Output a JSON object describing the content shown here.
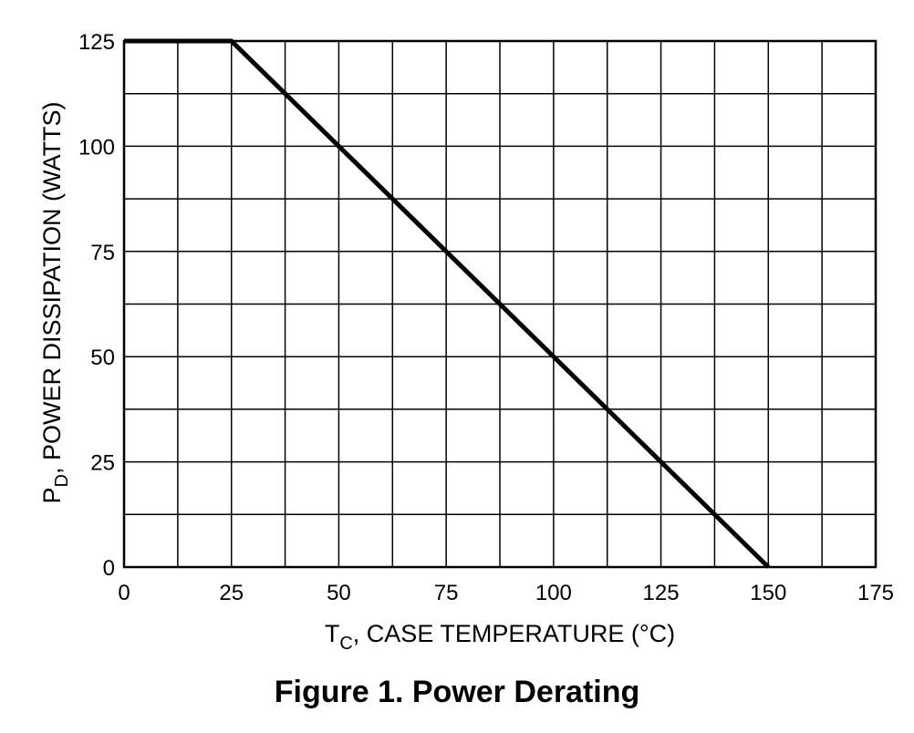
{
  "chart_data": {
    "type": "line",
    "title": "",
    "xlabel": {
      "main": "T",
      "sub": "C",
      "rest": ", CASE TEMPERATURE (°C)"
    },
    "ylabel": {
      "main": "P",
      "sub": "D",
      "rest": ", POWER DISSIPATION (WATTS)"
    },
    "xlim": [
      0,
      175
    ],
    "ylim": [
      0,
      125
    ],
    "x_ticks": [
      0,
      25,
      50,
      75,
      100,
      125,
      150,
      175
    ],
    "y_ticks": [
      0,
      25,
      50,
      75,
      100,
      125
    ],
    "x_tick_labels": [
      "0",
      "25",
      "50",
      "75",
      "100",
      "125",
      "150",
      "175"
    ],
    "y_tick_labels": [
      "0",
      "25",
      "50",
      "75",
      "100",
      "125"
    ],
    "grid": true,
    "series": [
      {
        "x": [
          0,
          25,
          150
        ],
        "y": [
          125,
          125,
          0
        ]
      }
    ]
  },
  "caption": "Figure 1. Power Derating",
  "colors": {
    "line": "#000000",
    "grid": "#000000",
    "background": "#ffffff"
  }
}
